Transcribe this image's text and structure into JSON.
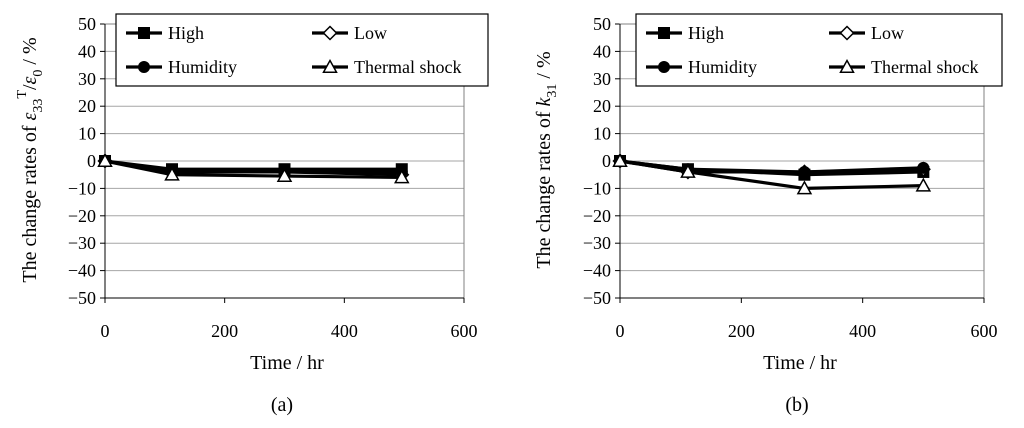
{
  "chart_data": [
    {
      "panel": "(a)",
      "type": "line",
      "title": "",
      "xlabel": "Time / hr",
      "ylabel": {
        "pre": "The change rates of ",
        "sym": "ε",
        "sub1": "33",
        "sup": "T",
        "mid": "/",
        "sym2": "ε",
        "sub2": "0",
        "post": " / %"
      },
      "xlim": [
        0,
        600
      ],
      "ylim": [
        -50,
        50
      ],
      "xticks": [
        "0",
        "200",
        "400",
        "600"
      ],
      "yticks": [
        "50",
        "40",
        "30",
        "20",
        "10",
        "0",
        "−10",
        "−20",
        "−30",
        "−40",
        "−50"
      ],
      "grid": "horizontal",
      "legend_position": "top",
      "x": [
        0,
        112,
        300,
        496
      ],
      "series": [
        {
          "name": "High",
          "marker": "filled-square",
          "values": [
            0,
            -3,
            -3,
            -3
          ]
        },
        {
          "name": "Low",
          "marker": "open-diamond",
          "values": [
            0,
            -4,
            -4,
            -5
          ]
        },
        {
          "name": "Humidity",
          "marker": "filled-circle",
          "values": [
            0,
            -4,
            -4,
            -4
          ]
        },
        {
          "name": "Thermal shock",
          "marker": "open-triangle",
          "values": [
            0,
            -5,
            -5.5,
            -6
          ]
        }
      ]
    },
    {
      "panel": "(b)",
      "type": "line",
      "title": "",
      "xlabel": "Time / hr",
      "ylabel": {
        "pre": "The change rates of ",
        "sym": "k",
        "sub1": "31",
        "sup": "",
        "mid": "",
        "sym2": "",
        "sub2": "",
        "post": " / %"
      },
      "xlim": [
        0,
        600
      ],
      "ylim": [
        -50,
        50
      ],
      "xticks": [
        "0",
        "200",
        "400",
        "600"
      ],
      "yticks": [
        "50",
        "40",
        "30",
        "20",
        "10",
        "0",
        "−10",
        "−20",
        "−30",
        "−40",
        "−50"
      ],
      "grid": "horizontal",
      "legend_position": "top",
      "x": [
        0,
        112,
        304,
        500
      ],
      "series": [
        {
          "name": "High",
          "marker": "filled-square",
          "values": [
            0,
            -3,
            -5,
            -4
          ]
        },
        {
          "name": "Low",
          "marker": "open-diamond",
          "values": [
            0,
            -4,
            -4,
            -3
          ]
        },
        {
          "name": "Humidity",
          "marker": "filled-circle",
          "values": [
            0,
            -3,
            -4,
            -2.5
          ]
        },
        {
          "name": "Thermal shock",
          "marker": "open-triangle",
          "values": [
            0,
            -4,
            -10,
            -9
          ]
        }
      ]
    }
  ]
}
